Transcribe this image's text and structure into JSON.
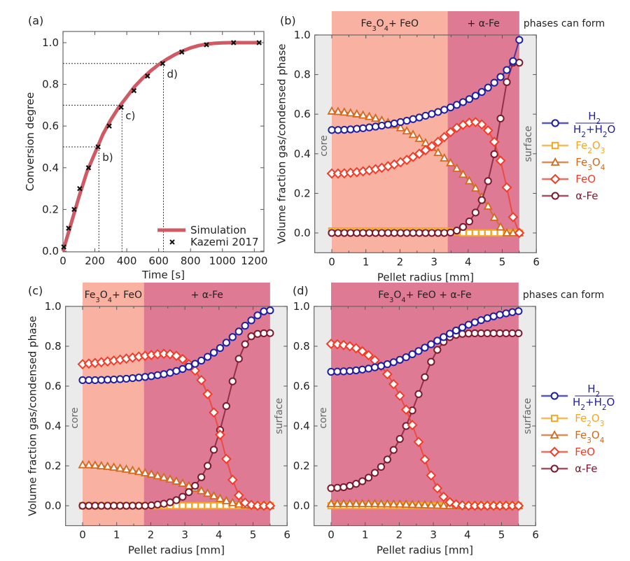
{
  "colors": {
    "h2_ratio": "#1f1fa0",
    "fe2o3": "#f5a623",
    "fe3o4": "#d2691e",
    "feo": "#f03c28",
    "alpha_fe": "#7a1a2e",
    "simulation": "#cf5a64",
    "region_light": "#f9b1a2",
    "region_dark": "#de7a94",
    "region_gray": "#ebebeb"
  },
  "chart_data": [
    {
      "id": "a",
      "type": "line",
      "panel_label": "(a)",
      "xlabel": "Time [s]",
      "ylabel": "Conversion degree",
      "xlim": [
        0,
        1260
      ],
      "ylim": [
        0,
        1.05
      ],
      "xticks": [
        0,
        200,
        400,
        600,
        800,
        1000,
        1200
      ],
      "yticks": [
        0.0,
        0.2,
        0.4,
        0.6,
        0.8,
        1.0
      ],
      "legend": [
        "Simulation",
        "Kazemi 2017"
      ],
      "legend_position": "bottom-right",
      "simulation": {
        "name": "Simulation",
        "x": [
          0,
          50,
          100,
          150,
          200,
          250,
          300,
          350,
          400,
          450,
          500,
          550,
          600,
          650,
          700,
          750,
          800,
          850,
          900,
          950,
          1000,
          1050,
          1100,
          1150,
          1230
        ],
        "y": [
          0.0,
          0.13,
          0.26,
          0.38,
          0.47,
          0.56,
          0.63,
          0.69,
          0.74,
          0.79,
          0.83,
          0.865,
          0.895,
          0.92,
          0.942,
          0.96,
          0.975,
          0.986,
          0.993,
          0.997,
          0.999,
          1.0,
          1.0,
          1.0,
          1.0
        ]
      },
      "experiment": {
        "name": "Kazemi 2017",
        "x": [
          5,
          35,
          70,
          105,
          160,
          220,
          290,
          365,
          445,
          530,
          625,
          745,
          900,
          1070,
          1230
        ],
        "y": [
          0.02,
          0.11,
          0.2,
          0.3,
          0.4,
          0.5,
          0.6,
          0.69,
          0.77,
          0.84,
          0.9,
          0.955,
          0.99,
          1.0,
          1.0
        ]
      },
      "annotations": [
        {
          "label": "b)",
          "x": 225,
          "y": 0.5
        },
        {
          "label": "c)",
          "x": 370,
          "y": 0.7
        },
        {
          "label": "d)",
          "x": 630,
          "y": 0.9
        }
      ]
    },
    {
      "id": "b",
      "type": "line",
      "panel_label": "(b)",
      "xlabel": "Pellet radius [mm]",
      "ylabel": "Volume fraction gas/condensed phase",
      "xlim": [
        -0.5,
        6
      ],
      "ylim": [
        -0.1,
        1.0
      ],
      "xticks": [
        0,
        1,
        2,
        3,
        4,
        5,
        6
      ],
      "yticks": [
        0.0,
        0.2,
        0.4,
        0.6,
        0.8,
        1.0
      ],
      "regions": [
        {
          "label": "Fe3O4 + FeO",
          "from": 0,
          "to": 3.4,
          "tone": "light"
        },
        {
          "label": "+ α-Fe",
          "from": 3.4,
          "to": 5.5,
          "tone": "dark"
        }
      ],
      "phases_label": "phases can form",
      "core_label": "core",
      "surface_label": "surface",
      "series": [
        {
          "name": "H2/(H2+H2O)",
          "key": "h2_ratio",
          "marker": "circle",
          "values": [
            0.52,
            0.52,
            0.521,
            0.523,
            0.526,
            0.529,
            0.533,
            0.537,
            0.542,
            0.547,
            0.553,
            0.56,
            0.567,
            0.575,
            0.583,
            0.592,
            0.601,
            0.611,
            0.622,
            0.634,
            0.647,
            0.661,
            0.676,
            0.693,
            0.712,
            0.734,
            0.759,
            0.788,
            0.823,
            0.868,
            0.975
          ]
        },
        {
          "name": "Fe2O3",
          "key": "fe2o3",
          "marker": "square",
          "values": [
            0.01,
            0.01,
            0.01,
            0.01,
            0.01,
            0.01,
            0.01,
            0.01,
            0.01,
            0.01,
            0.01,
            0.01,
            0.01,
            0.01,
            0.01,
            0.01,
            0.01,
            0.01,
            0.01,
            0.008,
            0.005,
            0,
            0,
            0,
            0,
            0,
            0,
            0,
            0,
            0,
            0
          ]
        },
        {
          "name": "Fe3O4",
          "key": "fe3o4",
          "marker": "triangle",
          "values": [
            0.615,
            0.613,
            0.61,
            0.606,
            0.601,
            0.595,
            0.588,
            0.579,
            0.569,
            0.558,
            0.545,
            0.531,
            0.515,
            0.497,
            0.477,
            0.455,
            0.432,
            0.406,
            0.378,
            0.354,
            0.326,
            0.296,
            0.263,
            0.226,
            0.182,
            0.135,
            0.078,
            0.03,
            0.0,
            0.0,
            0.0
          ]
        },
        {
          "name": "FeO",
          "key": "feo",
          "marker": "diamond",
          "values": [
            0.3,
            0.3,
            0.301,
            0.304,
            0.307,
            0.311,
            0.316,
            0.322,
            0.329,
            0.337,
            0.346,
            0.357,
            0.369,
            0.384,
            0.4,
            0.418,
            0.438,
            0.46,
            0.484,
            0.509,
            0.531,
            0.546,
            0.557,
            0.56,
            0.548,
            0.518,
            0.46,
            0.365,
            0.23,
            0.08,
            0.0
          ]
        },
        {
          "name": "α-Fe",
          "key": "alpha_fe",
          "marker": "circle",
          "values": [
            0,
            0,
            0,
            0,
            0,
            0,
            0,
            0,
            0,
            0,
            0,
            0,
            0,
            0,
            0,
            0,
            0,
            0,
            0,
            0.002,
            0.012,
            0.03,
            0.058,
            0.103,
            0.166,
            0.262,
            0.398,
            0.578,
            0.762,
            0.86,
            0.86
          ]
        }
      ]
    },
    {
      "id": "c",
      "type": "line",
      "panel_label": "(c)",
      "xlabel": "Pellet radius [mm]",
      "ylabel": "Volume fraction gas/condensed phase",
      "xlim": [
        -0.5,
        6
      ],
      "ylim": [
        -0.1,
        1.0
      ],
      "xticks": [
        0,
        1,
        2,
        3,
        4,
        5,
        6
      ],
      "yticks": [
        0.0,
        0.2,
        0.4,
        0.6,
        0.8,
        1.0
      ],
      "regions": [
        {
          "label": "Fe3O4 + FeO",
          "from": 0,
          "to": 1.8,
          "tone": "light"
        },
        {
          "label": "+ α-Fe",
          "from": 1.8,
          "to": 5.5,
          "tone": "dark"
        }
      ],
      "core_label": "core",
      "surface_label": "surface",
      "series": [
        {
          "name": "H2/(H2+H2O)",
          "key": "h2_ratio",
          "marker": "circle",
          "values": [
            0.63,
            0.63,
            0.63,
            0.631,
            0.632,
            0.633,
            0.635,
            0.637,
            0.64,
            0.643,
            0.646,
            0.65,
            0.655,
            0.66,
            0.667,
            0.676,
            0.686,
            0.698,
            0.712,
            0.728,
            0.747,
            0.768,
            0.791,
            0.818,
            0.846,
            0.874,
            0.903,
            0.93,
            0.955,
            0.975,
            0.98
          ]
        },
        {
          "name": "Fe2O3",
          "key": "fe2o3",
          "marker": "square",
          "values": [
            0,
            0,
            0,
            0,
            0,
            0,
            0,
            0,
            0,
            0,
            0,
            0,
            0,
            0,
            0,
            0,
            0,
            0,
            0,
            0,
            0,
            0,
            0,
            0,
            0,
            0,
            0,
            0,
            0,
            0,
            0
          ]
        },
        {
          "name": "Fe3O4",
          "key": "fe3o4",
          "marker": "triangle",
          "values": [
            0.205,
            0.205,
            0.203,
            0.2,
            0.197,
            0.193,
            0.188,
            0.183,
            0.177,
            0.171,
            0.165,
            0.158,
            0.15,
            0.142,
            0.133,
            0.123,
            0.112,
            0.1,
            0.088,
            0.075,
            0.062,
            0.049,
            0.036,
            0.025,
            0.015,
            0.008,
            0.004,
            0.002,
            0.0,
            0.0,
            0.0
          ]
        },
        {
          "name": "FeO",
          "key": "feo",
          "marker": "diamond",
          "values": [
            0.71,
            0.713,
            0.716,
            0.72,
            0.724,
            0.728,
            0.733,
            0.738,
            0.743,
            0.748,
            0.752,
            0.756,
            0.76,
            0.762,
            0.76,
            0.752,
            0.736,
            0.71,
            0.678,
            0.63,
            0.56,
            0.468,
            0.356,
            0.235,
            0.13,
            0.052,
            0.015,
            0.004,
            0.0,
            0.0,
            0.0
          ]
        },
        {
          "name": "α-Fe",
          "key": "alpha_fe",
          "marker": "circle",
          "values": [
            0,
            0,
            0,
            0,
            0,
            0,
            0,
            0,
            0,
            0,
            0,
            0.002,
            0.006,
            0.01,
            0.017,
            0.028,
            0.045,
            0.068,
            0.1,
            0.143,
            0.2,
            0.281,
            0.38,
            0.5,
            0.624,
            0.737,
            0.81,
            0.85,
            0.862,
            0.865,
            0.866
          ]
        }
      ]
    },
    {
      "id": "d",
      "type": "line",
      "panel_label": "(d)",
      "xlabel": "Pellet radius [mm]",
      "ylabel": "",
      "xlim": [
        -0.5,
        6
      ],
      "ylim": [
        -0.1,
        1.0
      ],
      "xticks": [
        0,
        1,
        2,
        3,
        4,
        5,
        6
      ],
      "yticks": [
        0.0,
        0.2,
        0.4,
        0.6,
        0.8,
        1.0
      ],
      "regions": [
        {
          "label": "Fe3O4 + FeO + α-Fe",
          "from": 0,
          "to": 5.5,
          "tone": "dark"
        }
      ],
      "phases_label": "phases can form",
      "core_label": "core",
      "surface_label": "surface",
      "series": [
        {
          "name": "H2/(H2+H2O)",
          "key": "h2_ratio",
          "marker": "circle",
          "values": [
            0.672,
            0.673,
            0.674,
            0.676,
            0.679,
            0.683,
            0.688,
            0.694,
            0.701,
            0.71,
            0.72,
            0.732,
            0.745,
            0.76,
            0.776,
            0.793,
            0.81,
            0.828,
            0.846,
            0.863,
            0.879,
            0.894,
            0.908,
            0.92,
            0.931,
            0.941,
            0.95,
            0.958,
            0.965,
            0.971,
            0.976
          ]
        },
        {
          "name": "Fe2O3",
          "key": "fe2o3",
          "marker": "square",
          "values": [
            0,
            0,
            0,
            0,
            0,
            0,
            0,
            0,
            0,
            0,
            0,
            0,
            0,
            0,
            0,
            0,
            0,
            0,
            0,
            0,
            0,
            0,
            0,
            0,
            0,
            0,
            0,
            0,
            0,
            0,
            0
          ]
        },
        {
          "name": "Fe3O4",
          "key": "fe3o4",
          "marker": "triangle",
          "values": [
            0.01,
            0.01,
            0.01,
            0.01,
            0.01,
            0.01,
            0.01,
            0.01,
            0.009,
            0.009,
            0.008,
            0.008,
            0.007,
            0.006,
            0.005,
            0.004,
            0.003,
            0.002,
            0.001,
            0.0,
            0.0,
            0.0,
            0.0,
            0.0,
            0.0,
            0.0,
            0.0,
            0.0,
            0.0,
            0.0,
            0.0
          ]
        },
        {
          "name": "FeO",
          "key": "feo",
          "marker": "diamond",
          "values": [
            0.812,
            0.81,
            0.806,
            0.8,
            0.79,
            0.775,
            0.755,
            0.73,
            0.7,
            0.66,
            0.61,
            0.552,
            0.482,
            0.405,
            0.32,
            0.232,
            0.152,
            0.088,
            0.045,
            0.018,
            0.007,
            0.002,
            0.0,
            0.0,
            0.0,
            0.0,
            0.0,
            0.0,
            0.0,
            0.0,
            0.0
          ]
        },
        {
          "name": "α-Fe",
          "key": "alpha_fe",
          "marker": "circle",
          "values": [
            0.088,
            0.09,
            0.093,
            0.1,
            0.11,
            0.123,
            0.141,
            0.165,
            0.195,
            0.232,
            0.28,
            0.335,
            0.4,
            0.478,
            0.56,
            0.645,
            0.722,
            0.782,
            0.822,
            0.846,
            0.857,
            0.862,
            0.864,
            0.865,
            0.865,
            0.865,
            0.865,
            0.865,
            0.865,
            0.865,
            0.865
          ]
        }
      ]
    }
  ],
  "legend": {
    "entries": [
      {
        "key": "h2_ratio",
        "numerator": "H₂",
        "denominator": "H₂+H₂O",
        "marker": "circle"
      },
      {
        "key": "fe2o3",
        "label": "Fe₂O₃",
        "marker": "square"
      },
      {
        "key": "fe3o4",
        "label": "Fe₃O₄",
        "marker": "triangle"
      },
      {
        "key": "feo",
        "label": "FeO",
        "marker": "diamond"
      },
      {
        "key": "alpha_fe",
        "label": "α-Fe",
        "marker": "circle"
      }
    ]
  },
  "region_labels": {
    "b": [
      "Fe₃O₄+ FeO",
      "+ α-Fe"
    ],
    "c": [
      "Fe₃O₄+ FeO",
      "+ α-Fe"
    ],
    "d": [
      "Fe₃O₄+ FeO + α-Fe"
    ]
  }
}
